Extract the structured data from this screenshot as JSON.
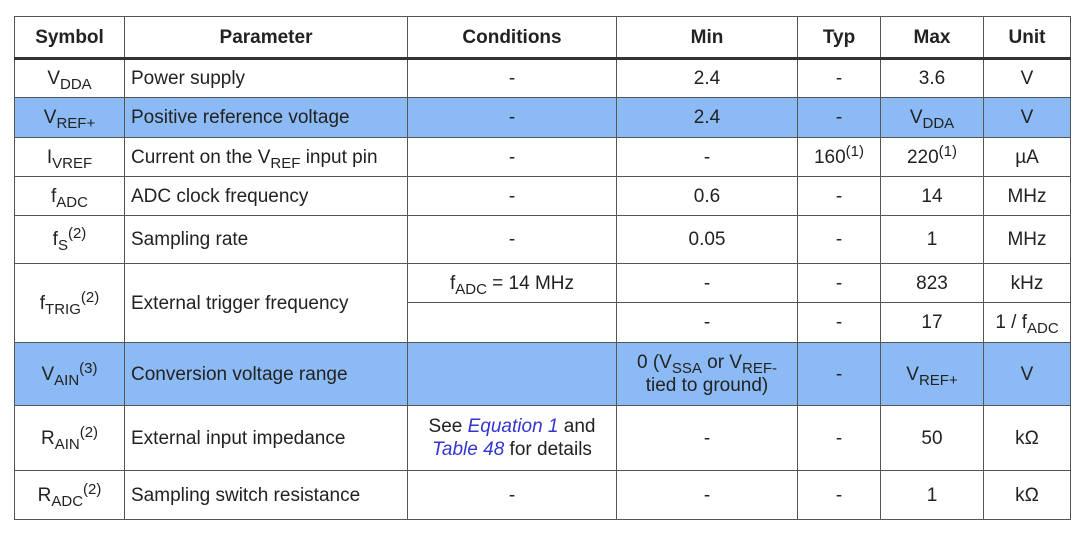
{
  "colors": {
    "highlight": "#8cbaf5",
    "link": "#3535d0",
    "border": "#555555"
  },
  "headers": [
    "Symbol",
    "Parameter",
    "Conditions",
    "Min",
    "Typ",
    "Max",
    "Unit"
  ],
  "rows": [
    {
      "hl": false,
      "cells": [
        [
          {
            "t": "V"
          },
          {
            "t": "DDA",
            "s": "sub"
          }
        ],
        [
          {
            "t": "Power supply"
          }
        ],
        [
          {
            "t": "-"
          }
        ],
        [
          {
            "t": "2.4"
          }
        ],
        [
          {
            "t": "-"
          }
        ],
        [
          {
            "t": "3.6"
          }
        ],
        [
          {
            "t": "V"
          }
        ]
      ]
    },
    {
      "hl": true,
      "cells": [
        [
          {
            "t": "V"
          },
          {
            "t": "REF+",
            "s": "sub"
          }
        ],
        [
          {
            "t": "Positive reference voltage"
          }
        ],
        [
          {
            "t": "-"
          }
        ],
        [
          {
            "t": "2.4"
          }
        ],
        [
          {
            "t": "-"
          }
        ],
        [
          {
            "t": "V"
          },
          {
            "t": "DDA",
            "s": "sub"
          }
        ],
        [
          {
            "t": "V"
          }
        ]
      ]
    },
    {
      "hl": false,
      "cells": [
        [
          {
            "t": "I"
          },
          {
            "t": "VREF",
            "s": "sub"
          }
        ],
        [
          {
            "t": "Current on the V"
          },
          {
            "t": "REF",
            "s": "sub"
          },
          {
            "t": " input pin"
          }
        ],
        [
          {
            "t": "-"
          }
        ],
        [
          {
            "t": "-"
          }
        ],
        [
          {
            "t": "160"
          },
          {
            "t": "(1)",
            "s": "sup"
          }
        ],
        [
          {
            "t": "220"
          },
          {
            "t": "(1)",
            "s": "sup"
          }
        ],
        [
          {
            "t": "µA"
          }
        ]
      ]
    },
    {
      "hl": false,
      "cells": [
        [
          {
            "t": "f"
          },
          {
            "t": "ADC",
            "s": "sub"
          }
        ],
        [
          {
            "t": "ADC clock frequency"
          }
        ],
        [
          {
            "t": "-"
          }
        ],
        [
          {
            "t": "0.6"
          }
        ],
        [
          {
            "t": "-"
          }
        ],
        [
          {
            "t": "14"
          }
        ],
        [
          {
            "t": "MHz"
          }
        ]
      ]
    },
    {
      "hl": false,
      "cells": [
        [
          {
            "t": "f"
          },
          {
            "t": "S",
            "s": "sub"
          },
          {
            "t": "(2)",
            "s": "sup"
          }
        ],
        [
          {
            "t": "Sampling rate"
          }
        ],
        [
          {
            "t": "-"
          }
        ],
        [
          {
            "t": "0.05"
          }
        ],
        [
          {
            "t": "-"
          }
        ],
        [
          {
            "t": "1"
          }
        ],
        [
          {
            "t": "MHz"
          }
        ]
      ]
    },
    {
      "hl": false,
      "span": true,
      "cells": [
        [
          {
            "t": "f"
          },
          {
            "t": "TRIG",
            "s": "sub"
          },
          {
            "t": "(2)",
            "s": "sup"
          }
        ],
        [
          {
            "t": "External trigger frequency"
          }
        ],
        [
          {
            "t": "f"
          },
          {
            "t": "ADC",
            "s": "sub"
          },
          {
            "t": " = 14 MHz"
          }
        ],
        [
          {
            "t": "-"
          }
        ],
        [
          {
            "t": "-"
          }
        ],
        [
          {
            "t": "823"
          }
        ],
        [
          {
            "t": "kHz"
          }
        ]
      ]
    },
    {
      "hl": false,
      "cont": true,
      "cells": [
        [],
        [
          {
            "t": "-"
          }
        ],
        [
          {
            "t": "-"
          }
        ],
        [
          {
            "t": "17"
          }
        ],
        [
          {
            "t": "1 / f"
          },
          {
            "t": "ADC",
            "s": "sub"
          }
        ]
      ]
    },
    {
      "hl": true,
      "cells": [
        [
          {
            "t": "V"
          },
          {
            "t": "AIN",
            "s": "sub"
          },
          {
            "t": "(3)",
            "s": "sup"
          }
        ],
        [
          {
            "t": "Conversion voltage range"
          }
        ],
        [],
        [
          {
            "t": "0 (V"
          },
          {
            "t": "SSA",
            "s": "sub"
          },
          {
            "t": " or V"
          },
          {
            "t": "REF-",
            "s": "sub"
          },
          {
            "t": "tied to ground)",
            "s": "br"
          }
        ],
        [
          {
            "t": "-"
          }
        ],
        [
          {
            "t": "V"
          },
          {
            "t": "REF+",
            "s": "sub"
          }
        ],
        [
          {
            "t": "V"
          }
        ]
      ]
    },
    {
      "hl": false,
      "cells": [
        [
          {
            "t": "R"
          },
          {
            "t": "AIN",
            "s": "sub"
          },
          {
            "t": "(2)",
            "s": "sup"
          }
        ],
        [
          {
            "t": "External input impedance"
          }
        ],
        [
          {
            "t": "See "
          },
          {
            "t": "Equation 1",
            "s": "link"
          },
          {
            "t": " and"
          },
          {
            "t": "Table 48",
            "s": "brlink"
          },
          {
            "t": " for details"
          }
        ],
        [
          {
            "t": "-"
          }
        ],
        [
          {
            "t": "-"
          }
        ],
        [
          {
            "t": "50"
          }
        ],
        [
          {
            "t": "kΩ"
          }
        ]
      ]
    },
    {
      "hl": false,
      "cells": [
        [
          {
            "t": "R"
          },
          {
            "t": "ADC",
            "s": "sub"
          },
          {
            "t": "(2)",
            "s": "sup"
          }
        ],
        [
          {
            "t": "Sampling switch resistance"
          }
        ],
        [
          {
            "t": "-"
          }
        ],
        [
          {
            "t": "-"
          }
        ],
        [
          {
            "t": "-"
          }
        ],
        [
          {
            "t": "1"
          }
        ],
        [
          {
            "t": "kΩ"
          }
        ]
      ]
    }
  ]
}
